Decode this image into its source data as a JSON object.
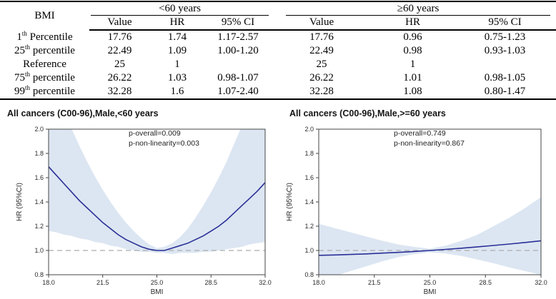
{
  "table": {
    "corner_label": "BMI",
    "group_headers": [
      "<60 years",
      "≥60 years"
    ],
    "sub_headers": [
      "Value",
      "HR",
      "95% CI",
      "Value",
      "HR",
      "95% CI"
    ],
    "rows": [
      {
        "label": {
          "pre": "1",
          "sup": "th",
          "post": " Percentile"
        },
        "cells": [
          "17.76",
          "1.74",
          "1.17-2.57",
          "17.76",
          "0.96",
          "0.75-1.23"
        ]
      },
      {
        "label": {
          "pre": "25",
          "sup": "th",
          "post": " percentile"
        },
        "cells": [
          "22.49",
          "1.09",
          "1.00-1.20",
          "22.49",
          "0.98",
          "0.93-1.03"
        ]
      },
      {
        "label": {
          "pre": "Reference",
          "sup": "",
          "post": ""
        },
        "cells": [
          "25",
          "1",
          "",
          "25",
          "1",
          ""
        ]
      },
      {
        "label": {
          "pre": "75",
          "sup": "th",
          "post": " percentile"
        },
        "cells": [
          "26.22",
          "1.03",
          "0.98-1.07",
          "26.22",
          "1.01",
          "0.98-1.05"
        ]
      },
      {
        "label": {
          "pre": "99",
          "sup": "th",
          "post": " percentile"
        },
        "cells": [
          "32.28",
          "1.6",
          "1.07-2.40",
          "32.28",
          "1.08",
          "0.80-1.47"
        ]
      }
    ]
  },
  "chart_data": [
    {
      "type": "line",
      "title": "All cancers (C00-96),Male,<60 years",
      "annotations": [
        "p-overall=0.009",
        "p-non-linearity=0.003"
      ],
      "xlabel": "BMI",
      "ylabel": "HR (95%CI)",
      "xlim": [
        18,
        32
      ],
      "ylim": [
        0.8,
        2.0
      ],
      "xticks": [
        18.0,
        21.5,
        25.0,
        28.5,
        32.0
      ],
      "yticks": [
        0.8,
        1.0,
        1.2,
        1.4,
        1.6,
        1.8,
        2.0
      ],
      "ref_line_y": 1.0,
      "grid": false,
      "legend": "none",
      "line_color": "#2a2f96",
      "band_color": "#dce6f2",
      "ref_line_color": "#ababab",
      "series": [
        {
          "name": "HR",
          "x": [
            18,
            18.5,
            19,
            19.5,
            20,
            20.5,
            21,
            21.5,
            22,
            22.5,
            23,
            23.5,
            24,
            24.5,
            25,
            25.5,
            26,
            26.5,
            27,
            27.5,
            28,
            28.5,
            29,
            29.5,
            30,
            30.5,
            31,
            31.5,
            32
          ],
          "y": [
            1.69,
            1.62,
            1.55,
            1.48,
            1.41,
            1.35,
            1.29,
            1.23,
            1.18,
            1.13,
            1.09,
            1.06,
            1.03,
            1.01,
            1.0,
            1.0,
            1.02,
            1.04,
            1.06,
            1.09,
            1.12,
            1.16,
            1.2,
            1.25,
            1.31,
            1.37,
            1.43,
            1.49,
            1.56
          ]
        },
        {
          "name": "CI upper",
          "x": [
            18,
            18.5,
            19,
            19.5,
            20,
            20.5,
            21,
            21.5,
            22,
            22.5,
            23,
            23.5,
            24,
            24.5,
            25,
            25.5,
            26,
            26.5,
            27,
            27.5,
            28,
            28.5,
            29,
            29.5,
            30,
            30.5,
            31,
            31.5,
            32
          ],
          "y": [
            2.57,
            2.36,
            2.17,
            2.0,
            1.86,
            1.73,
            1.61,
            1.5,
            1.4,
            1.31,
            1.23,
            1.16,
            1.1,
            1.05,
            1.02,
            1.03,
            1.06,
            1.11,
            1.18,
            1.27,
            1.37,
            1.48,
            1.6,
            1.73,
            1.88,
            2.03,
            2.18,
            2.33,
            2.48
          ]
        },
        {
          "name": "CI lower",
          "x": [
            18,
            18.5,
            19,
            19.5,
            20,
            20.5,
            21,
            21.5,
            22,
            22.5,
            23,
            23.5,
            24,
            24.5,
            25,
            25.5,
            26,
            26.5,
            27,
            27.5,
            28,
            28.5,
            29,
            29.5,
            30,
            30.5,
            31,
            31.5,
            32
          ],
          "y": [
            1.16,
            1.15,
            1.13,
            1.12,
            1.1,
            1.09,
            1.07,
            1.06,
            1.04,
            1.03,
            1.01,
            1.0,
            0.99,
            0.99,
            0.98,
            0.98,
            0.97,
            0.98,
            0.98,
            0.98,
            0.99,
            0.99,
            1.0,
            1.01,
            1.02,
            1.03,
            1.05,
            1.06,
            1.07
          ]
        }
      ]
    },
    {
      "type": "line",
      "title": "All cancers (C00-96),Male,>=60 years",
      "annotations": [
        "p-overall=0.749",
        "p-non-linearity=0.867"
      ],
      "xlabel": "BMI",
      "ylabel": "HR (95%CI)",
      "xlim": [
        18,
        32
      ],
      "ylim": [
        0.8,
        2.0
      ],
      "xticks": [
        18.0,
        21.5,
        25.0,
        28.5,
        32.0
      ],
      "yticks": [
        0.8,
        1.0,
        1.2,
        1.4,
        1.6,
        1.8,
        2.0
      ],
      "ref_line_y": 1.0,
      "grid": false,
      "legend": "none",
      "line_color": "#2a2f96",
      "band_color": "#dce6f2",
      "ref_line_color": "#ababab",
      "series": [
        {
          "name": "HR",
          "x": [
            18,
            19,
            20,
            21,
            22,
            23,
            24,
            25,
            26,
            27,
            28,
            29,
            30,
            31,
            32
          ],
          "y": [
            0.96,
            0.963,
            0.967,
            0.972,
            0.978,
            0.984,
            0.992,
            1.0,
            1.009,
            1.019,
            1.03,
            1.041,
            1.053,
            1.066,
            1.08
          ]
        },
        {
          "name": "CI upper",
          "x": [
            18,
            19,
            20,
            21,
            22,
            23,
            24,
            25,
            26,
            27,
            28,
            29,
            30,
            31,
            32
          ],
          "y": [
            1.22,
            1.185,
            1.15,
            1.115,
            1.08,
            1.05,
            1.03,
            1.015,
            1.04,
            1.08,
            1.13,
            1.2,
            1.27,
            1.35,
            1.44
          ]
        },
        {
          "name": "CI lower",
          "x": [
            18,
            19,
            20,
            21,
            22,
            23,
            24,
            25,
            26,
            27,
            28,
            29,
            30,
            31,
            32
          ],
          "y": [
            0.76,
            0.79,
            0.83,
            0.87,
            0.91,
            0.945,
            0.97,
            0.985,
            0.975,
            0.955,
            0.925,
            0.895,
            0.86,
            0.83,
            0.8
          ]
        }
      ]
    }
  ]
}
